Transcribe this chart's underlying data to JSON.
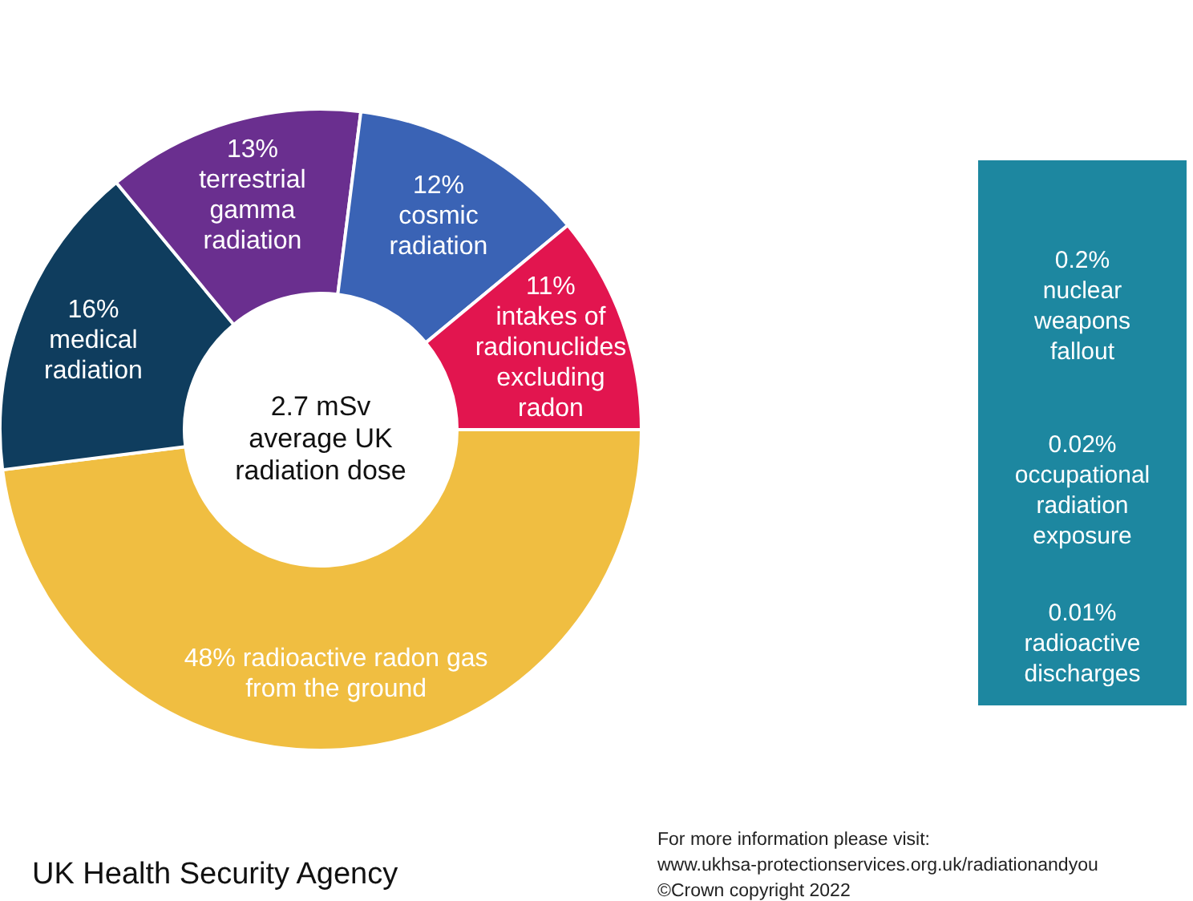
{
  "chart_data": {
    "type": "donut",
    "categories": [
      "radioactive radon gas\nfrom the ground",
      "medical\nradiation",
      "terrestrial\ngamma\nradiation",
      "cosmic\nradiation",
      "intakes of\nradionuclides\nexcluding\nradon"
    ],
    "values": [
      48,
      16,
      13,
      12,
      11
    ],
    "value_labels": [
      "48%",
      "16%",
      "13%",
      "12%",
      "11%"
    ],
    "colors": [
      "#f0be41",
      "#0f3d5e",
      "#6a2f8f",
      "#3a63b5",
      "#e2154f"
    ],
    "annotations": [
      "2.7 mSv\naverage UK\nradiation dose",
      "0.2%\nnuclear\nweapons\nfallout",
      "0.02%\noccupational\nradiation\nexposure",
      "0.01%\nradioactive\ndischarges",
      "UK Health Security Agency",
      "For more information please visit:\nwww.ukhsa-protectionservices.org.uk/radiationandyou\n©Crown copyright 2022"
    ]
  }
}
